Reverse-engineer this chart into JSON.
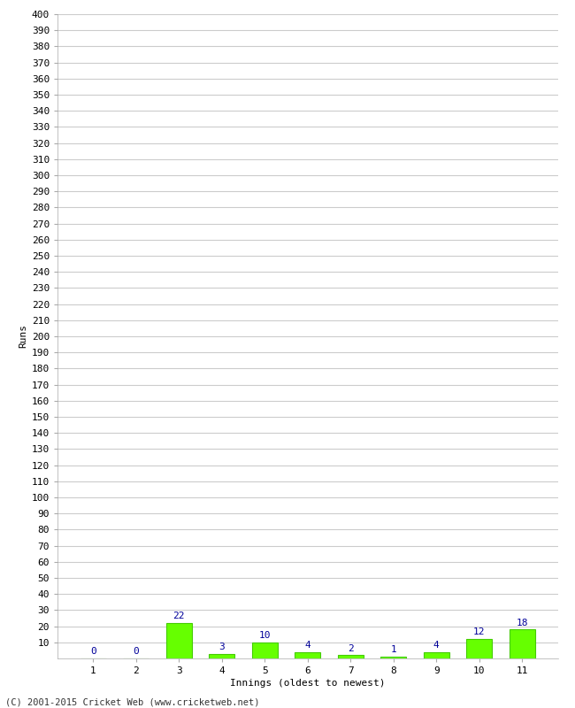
{
  "xlabel": "Innings (oldest to newest)",
  "ylabel": "Runs",
  "categories": [
    "1",
    "2",
    "3",
    "4",
    "5",
    "6",
    "7",
    "8",
    "9",
    "10",
    "11"
  ],
  "values": [
    0,
    0,
    22,
    3,
    10,
    4,
    2,
    1,
    4,
    12,
    18
  ],
  "bar_color": "#66ff00",
  "bar_edge_color": "#44cc00",
  "label_color": "#000099",
  "ylim": [
    0,
    400
  ],
  "background_color": "#ffffff",
  "grid_color": "#cccccc",
  "footer": "(C) 2001-2015 Cricket Web (www.cricketweb.net)"
}
